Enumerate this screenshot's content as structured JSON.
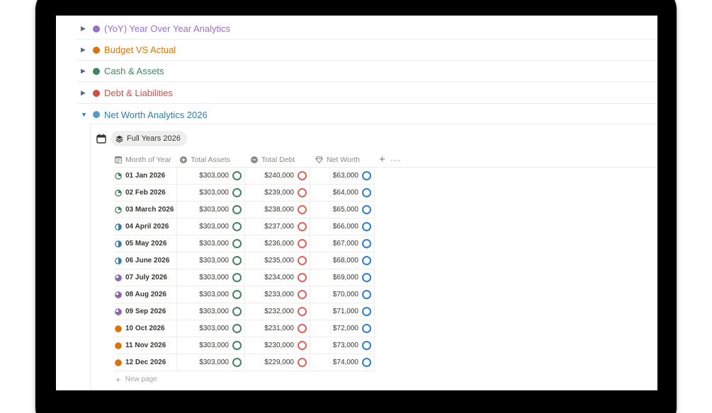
{
  "toggles": [
    {
      "label": "(YoY) Year Over Year Analytics",
      "color": "#9b6fc3",
      "open": false,
      "triangle": "▶"
    },
    {
      "label": "Budget VS Actual",
      "color": "#d9730d",
      "open": false,
      "triangle": "▶"
    },
    {
      "label": "Cash & Assets",
      "color": "#448361",
      "open": false,
      "triangle": "▶"
    },
    {
      "label": "Debt & Liabilities",
      "color": "#d44c47",
      "open": false,
      "triangle": "▶"
    },
    {
      "label": "Net Worth Analytics 2026",
      "color": "#337ea9",
      "open": true,
      "triangle": "▼"
    }
  ],
  "view": {
    "label": "Full Years 2026"
  },
  "columns": {
    "month": "Month of Year",
    "assets": "Total Assets",
    "debt": "Total Debt",
    "net": "Net Worth",
    "add": "+",
    "more": "···"
  },
  "ring_colors": {
    "assets": "#448361",
    "debt": "#e16259",
    "net": "#2f7fd0"
  },
  "rows": [
    {
      "month": "01 Jan 2026",
      "quarter": "q1",
      "assets": "$303,000",
      "debt": "$240,000",
      "net": "$63,000"
    },
    {
      "month": "02 Feb 2026",
      "quarter": "q1",
      "assets": "$303,000",
      "debt": "$239,000",
      "net": "$64,000"
    },
    {
      "month": "03 March 2026",
      "quarter": "q1",
      "assets": "$303,000",
      "debt": "$238,000",
      "net": "$65,000"
    },
    {
      "month": "04 April 2026",
      "quarter": "q2",
      "assets": "$303,000",
      "debt": "$237,000",
      "net": "$66,000"
    },
    {
      "month": "05 May 2026",
      "quarter": "q2",
      "assets": "$303,000",
      "debt": "$236,000",
      "net": "$67,000"
    },
    {
      "month": "06 June 2026",
      "quarter": "q2",
      "assets": "$303,000",
      "debt": "$235,000",
      "net": "$68,000"
    },
    {
      "month": "07 July 2026",
      "quarter": "q3",
      "assets": "$303,000",
      "debt": "$234,000",
      "net": "$69,000"
    },
    {
      "month": "08 Aug 2026",
      "quarter": "q3",
      "assets": "$303,000",
      "debt": "$233,000",
      "net": "$70,000"
    },
    {
      "month": "09 Sep 2026",
      "quarter": "q3",
      "assets": "$303,000",
      "debt": "$232,000",
      "net": "$71,000"
    },
    {
      "month": "10 Oct 2026",
      "quarter": "q4",
      "assets": "$303,000",
      "debt": "$231,000",
      "net": "$72,000"
    },
    {
      "month": "11 Nov 2026",
      "quarter": "q4",
      "assets": "$303,000",
      "debt": "$230,000",
      "net": "$73,000"
    },
    {
      "month": "12 Dec 2026",
      "quarter": "q4",
      "assets": "$303,000",
      "debt": "$229,000",
      "net": "$74,000"
    }
  ],
  "quarter_icons": {
    "q1": {
      "name": "quarter-pie-quarter-icon",
      "color": "#448361"
    },
    "q2": {
      "name": "quarter-pie-half-icon",
      "color": "#337ea9"
    },
    "q3": {
      "name": "quarter-pie-three-quarter-icon",
      "color": "#9065b0"
    },
    "q4": {
      "name": "quarter-pie-full-icon",
      "color": "#d9730d"
    }
  },
  "new_page": {
    "plus": "+",
    "label": "New page"
  }
}
